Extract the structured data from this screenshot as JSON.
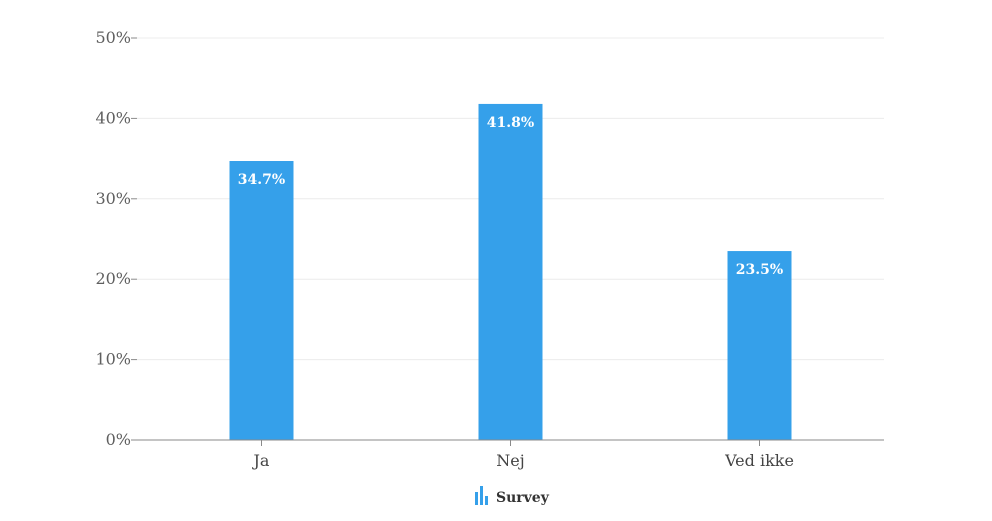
{
  "chart_data": {
    "type": "bar",
    "categories": [
      "Ja",
      "Nej",
      "Ved ikke"
    ],
    "series": [
      {
        "name": "Survey",
        "values": [
          34.7,
          41.8,
          23.5
        ]
      }
    ],
    "data_labels": [
      "34.7%",
      "41.8%",
      "23.5%"
    ],
    "y_ticks": [
      "0%",
      "10%",
      "20%",
      "30%",
      "40%",
      "50%"
    ],
    "ylim": [
      0,
      50
    ],
    "grid": true,
    "legend_position": "bottom-center",
    "bar_color": "#35a0ea",
    "legend_icon": "bar-chart-icon"
  }
}
